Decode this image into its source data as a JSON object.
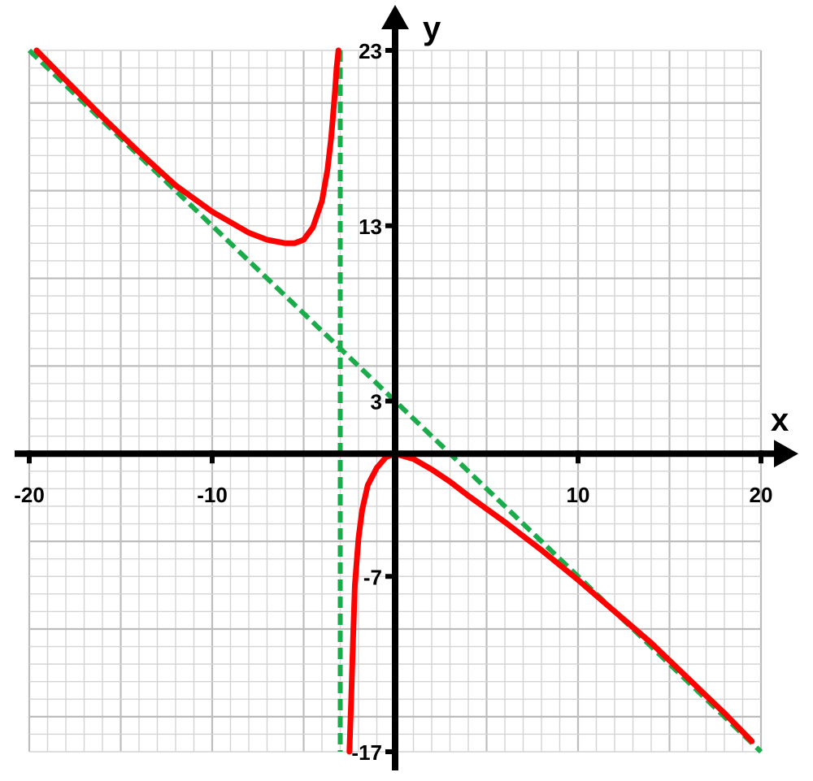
{
  "chart_data": {
    "type": "line",
    "title": "",
    "xlabel": "x",
    "ylabel": "y",
    "xlim": [
      -20,
      20
    ],
    "ylim": [
      -17,
      23
    ],
    "grid": true,
    "x_tick_labels": [
      "-20",
      "-10",
      "10",
      "20"
    ],
    "x_tick_values": [
      -20,
      -10,
      10,
      20
    ],
    "y_tick_labels": [
      "23",
      "13",
      "3",
      "-7",
      "-17"
    ],
    "y_tick_values": [
      23,
      13,
      3,
      -7,
      -17
    ],
    "colors": {
      "curve": "#ff0000",
      "asymptote": "#1aab4b",
      "axis": "#000000",
      "grid_minor": "#d4d4d4",
      "grid_major": "#bdbdbd"
    },
    "series": [
      {
        "kind": "curve",
        "x": [
          -19.6,
          -18,
          -16,
          -14,
          -12,
          -10,
          -8,
          -7,
          -6,
          -5.5,
          -5,
          -4.5,
          -4,
          -3.7,
          -3.5,
          -3.3,
          -3.2,
          -3.1
        ],
        "y": [
          23.0,
          21.3,
          19.2,
          17.2,
          15.3,
          13.8,
          12.6,
          12.2,
          12.0,
          12.0,
          12.2,
          12.9,
          14.4,
          16.2,
          18.0,
          20.5,
          22.0,
          23.0
        ]
      },
      {
        "kind": "curve",
        "x": [
          -2.5,
          -2.4,
          -2.3,
          -2.2,
          -2.0,
          -1.8,
          -1.5,
          -1.0,
          -0.5,
          0,
          1,
          2,
          3,
          4,
          6,
          8,
          10,
          12,
          14,
          16,
          18,
          19.5
        ],
        "y": [
          -17.0,
          -14.0,
          -10.5,
          -7.5,
          -4.8,
          -3.2,
          -1.8,
          -0.8,
          -0.2,
          0,
          -0.3,
          -0.9,
          -1.6,
          -2.4,
          -3.9,
          -5.5,
          -7.2,
          -9.0,
          -10.8,
          -12.8,
          -14.8,
          -16.4
        ]
      },
      {
        "kind": "asymptote",
        "x": [
          -20,
          20
        ],
        "y": [
          23,
          -17
        ]
      },
      {
        "kind": "asymptote",
        "x": [
          -3,
          -3
        ],
        "y": [
          23,
          -17
        ]
      }
    ]
  }
}
